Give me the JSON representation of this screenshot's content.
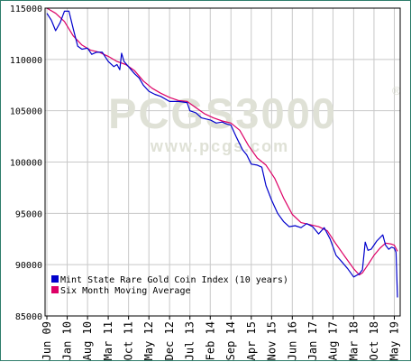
{
  "chart_data": {
    "type": "line",
    "title": "",
    "xlabel": "",
    "ylabel": "",
    "ylim": [
      85000,
      115000
    ],
    "yticks": [
      85000,
      90000,
      95000,
      100000,
      105000,
      110000,
      115000
    ],
    "xlim": [
      2009.42,
      2019.42
    ],
    "xticks": [
      {
        "label": "Jun 09",
        "x": 2009.42
      },
      {
        "label": "Jan 10",
        "x": 2010.0
      },
      {
        "label": "Aug 10",
        "x": 2010.58
      },
      {
        "label": "Mar 11",
        "x": 2011.17
      },
      {
        "label": "Oct 11",
        "x": 2011.75
      },
      {
        "label": "May 12",
        "x": 2012.33
      },
      {
        "label": "Dec 12",
        "x": 2012.92
      },
      {
        "label": "Jul 13",
        "x": 2013.5
      },
      {
        "label": "Feb 14",
        "x": 2014.08
      },
      {
        "label": "Sep 14",
        "x": 2014.67
      },
      {
        "label": "Apr 15",
        "x": 2015.25
      },
      {
        "label": "Nov 15",
        "x": 2015.83
      },
      {
        "label": "Jun 16",
        "x": 2016.42
      },
      {
        "label": "Jan 17",
        "x": 2017.0
      },
      {
        "label": "Aug 17",
        "x": 2017.58
      },
      {
        "label": "Mar 18",
        "x": 2018.17
      },
      {
        "label": "Oct 18",
        "x": 2018.75
      },
      {
        "label": "May 19",
        "x": 2019.33
      }
    ],
    "grid": true,
    "legend_position": "bottom-left",
    "watermark": {
      "main": "PCGS3000",
      "registered": "®",
      "url": "www.pcgs.com"
    },
    "series": [
      {
        "name": "Mint State Rare Gold Coin Index (10 years)",
        "color": "#0000cc",
        "points": [
          [
            2009.42,
            114500
          ],
          [
            2009.55,
            113800
          ],
          [
            2009.67,
            112800
          ],
          [
            2009.8,
            113600
          ],
          [
            2009.92,
            114700
          ],
          [
            2010.05,
            114700
          ],
          [
            2010.17,
            113000
          ],
          [
            2010.3,
            111300
          ],
          [
            2010.42,
            111000
          ],
          [
            2010.58,
            111100
          ],
          [
            2010.7,
            110500
          ],
          [
            2010.83,
            110700
          ],
          [
            2011.0,
            110700
          ],
          [
            2011.17,
            109800
          ],
          [
            2011.33,
            109300
          ],
          [
            2011.42,
            109500
          ],
          [
            2011.5,
            109000
          ],
          [
            2011.55,
            110600
          ],
          [
            2011.62,
            109800
          ],
          [
            2011.75,
            109300
          ],
          [
            2011.92,
            108600
          ],
          [
            2012.05,
            108200
          ],
          [
            2012.17,
            107500
          ],
          [
            2012.33,
            106900
          ],
          [
            2012.5,
            106600
          ],
          [
            2012.67,
            106400
          ],
          [
            2012.92,
            105900
          ],
          [
            2013.17,
            105900
          ],
          [
            2013.42,
            105800
          ],
          [
            2013.5,
            105000
          ],
          [
            2013.67,
            104800
          ],
          [
            2013.83,
            104300
          ],
          [
            2014.08,
            104100
          ],
          [
            2014.25,
            103800
          ],
          [
            2014.42,
            103900
          ],
          [
            2014.55,
            103700
          ],
          [
            2014.67,
            103600
          ],
          [
            2014.83,
            102400
          ],
          [
            2015.0,
            101200
          ],
          [
            2015.12,
            100700
          ],
          [
            2015.25,
            99800
          ],
          [
            2015.42,
            99700
          ],
          [
            2015.55,
            99500
          ],
          [
            2015.67,
            97700
          ],
          [
            2015.83,
            96300
          ],
          [
            2016.0,
            95000
          ],
          [
            2016.17,
            94200
          ],
          [
            2016.33,
            93700
          ],
          [
            2016.5,
            93800
          ],
          [
            2016.67,
            93600
          ],
          [
            2016.83,
            94000
          ],
          [
            2017.0,
            93700
          ],
          [
            2017.17,
            93000
          ],
          [
            2017.33,
            93600
          ],
          [
            2017.5,
            92500
          ],
          [
            2017.67,
            90900
          ],
          [
            2017.83,
            90300
          ],
          [
            2018.0,
            89600
          ],
          [
            2018.17,
            88800
          ],
          [
            2018.33,
            89100
          ],
          [
            2018.42,
            89500
          ],
          [
            2018.5,
            92200
          ],
          [
            2018.58,
            91400
          ],
          [
            2018.67,
            91500
          ],
          [
            2018.83,
            92300
          ],
          [
            2019.0,
            92900
          ],
          [
            2019.08,
            91900
          ],
          [
            2019.17,
            91500
          ],
          [
            2019.25,
            91700
          ],
          [
            2019.33,
            91600
          ],
          [
            2019.38,
            91200
          ],
          [
            2019.42,
            86800
          ]
        ]
      },
      {
        "name": "Six Month Moving Average",
        "color": "#dd0066",
        "points": [
          [
            2009.42,
            115000
          ],
          [
            2009.67,
            114500
          ],
          [
            2009.92,
            113700
          ],
          [
            2010.17,
            112300
          ],
          [
            2010.42,
            111400
          ],
          [
            2010.67,
            110900
          ],
          [
            2010.92,
            110700
          ],
          [
            2011.17,
            110300
          ],
          [
            2011.42,
            109800
          ],
          [
            2011.67,
            109500
          ],
          [
            2011.92,
            108900
          ],
          [
            2012.17,
            107900
          ],
          [
            2012.42,
            107200
          ],
          [
            2012.67,
            106700
          ],
          [
            2012.92,
            106300
          ],
          [
            2013.17,
            106000
          ],
          [
            2013.42,
            105900
          ],
          [
            2013.67,
            105300
          ],
          [
            2013.92,
            104700
          ],
          [
            2014.17,
            104300
          ],
          [
            2014.42,
            104000
          ],
          [
            2014.67,
            103800
          ],
          [
            2014.92,
            103100
          ],
          [
            2015.17,
            101600
          ],
          [
            2015.42,
            100400
          ],
          [
            2015.67,
            99700
          ],
          [
            2015.92,
            98400
          ],
          [
            2016.17,
            96500
          ],
          [
            2016.42,
            94900
          ],
          [
            2016.67,
            94100
          ],
          [
            2016.92,
            93900
          ],
          [
            2017.17,
            93700
          ],
          [
            2017.42,
            93300
          ],
          [
            2017.67,
            92000
          ],
          [
            2017.92,
            90800
          ],
          [
            2018.17,
            89600
          ],
          [
            2018.33,
            89000
          ],
          [
            2018.42,
            89200
          ],
          [
            2018.58,
            90000
          ],
          [
            2018.75,
            90900
          ],
          [
            2018.92,
            91600
          ],
          [
            2019.08,
            92100
          ],
          [
            2019.25,
            92000
          ],
          [
            2019.33,
            91900
          ],
          [
            2019.42,
            91300
          ]
        ]
      }
    ]
  }
}
